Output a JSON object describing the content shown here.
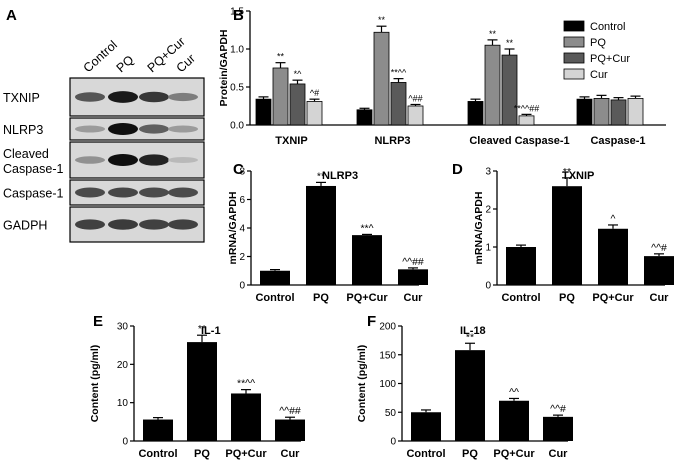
{
  "panel_letters": [
    "A",
    "B",
    "C",
    "D",
    "E",
    "F"
  ],
  "western_blot": {
    "lanes": [
      "Control",
      "PQ",
      "PQ+Cur",
      "Cur"
    ],
    "rows": [
      {
        "label_lines": [
          "TXNIP"
        ],
        "intensity": [
          0.65,
          0.95,
          0.8,
          0.45
        ]
      },
      {
        "label_lines": [
          "NLRP3"
        ],
        "intensity": [
          0.3,
          1.0,
          0.6,
          0.3
        ]
      },
      {
        "label_lines": [
          "Cleaved",
          "Caspase-1"
        ],
        "intensity": [
          0.35,
          1.0,
          0.9,
          0.15
        ]
      },
      {
        "label_lines": [
          "Caspase-1"
        ],
        "intensity": [
          0.7,
          0.72,
          0.7,
          0.7
        ]
      },
      {
        "label_lines": [
          "GADPH"
        ],
        "intensity": [
          0.75,
          0.78,
          0.75,
          0.75
        ]
      }
    ]
  },
  "colors": {
    "control": "#000000",
    "pq": "#8c8c8c",
    "pq_cur": "#5a5a5a",
    "cur": "#d4d4d4",
    "bar_black": "#000000"
  },
  "chart_data": [
    {
      "id": "B",
      "type": "bar",
      "ylabel": "Protein/GAPDH",
      "ylim": [
        0,
        1.5
      ],
      "yticks": [
        "0.0",
        "0.5",
        "1.0",
        "1.5"
      ],
      "categories": [
        "TXNIP",
        "NLRP3",
        "Cleaved  Caspase-1",
        "Caspase-1"
      ],
      "legend": "top-right",
      "series": [
        {
          "name": "Control",
          "color": "#000000",
          "values": [
            0.34,
            0.2,
            0.31,
            0.34
          ],
          "errors": [
            0.03,
            0.02,
            0.03,
            0.03
          ],
          "annotations": [
            "",
            "",
            "",
            ""
          ]
        },
        {
          "name": "PQ",
          "color": "#8c8c8c",
          "values": [
            0.75,
            1.22,
            1.05,
            0.35
          ],
          "errors": [
            0.07,
            0.08,
            0.07,
            0.04
          ],
          "annotations": [
            "**",
            "**",
            "**",
            ""
          ]
        },
        {
          "name": "PQ+Cur",
          "color": "#5a5a5a",
          "values": [
            0.54,
            0.56,
            0.92,
            0.33
          ],
          "errors": [
            0.05,
            0.05,
            0.08,
            0.03
          ],
          "annotations": [
            "*^",
            "**^^",
            "**",
            ""
          ]
        },
        {
          "name": "Cur",
          "color": "#d4d4d4",
          "values": [
            0.31,
            0.25,
            0.12,
            0.35
          ],
          "errors": [
            0.03,
            0.02,
            0.02,
            0.03
          ],
          "annotations": [
            "^#",
            "^##",
            "**^^##",
            ""
          ]
        }
      ]
    },
    {
      "id": "C",
      "type": "bar",
      "title": "NLRP3",
      "ylabel": "mRNA/GAPDH",
      "ylim": [
        0,
        8
      ],
      "yticks": [
        "0",
        "2",
        "4",
        "6",
        "8"
      ],
      "categories": [
        "Control",
        "PQ",
        "PQ+Cur",
        "Cur"
      ],
      "values": [
        1.0,
        6.95,
        3.5,
        1.1
      ],
      "errors": [
        0.08,
        0.25,
        0.05,
        0.1
      ],
      "annotations": [
        "",
        "**",
        "**^",
        "^^##"
      ]
    },
    {
      "id": "D",
      "type": "bar",
      "title": "TXNIP",
      "ylabel": "mRNA/GAPDH",
      "ylim": [
        0,
        3
      ],
      "yticks": [
        "0",
        "1",
        "2",
        "3"
      ],
      "categories": [
        "Control",
        "PQ",
        "PQ+Cur",
        "Cur"
      ],
      "values": [
        1.0,
        2.6,
        1.48,
        0.76
      ],
      "errors": [
        0.05,
        0.22,
        0.1,
        0.06
      ],
      "annotations": [
        "",
        "**",
        "^",
        "^^#"
      ]
    },
    {
      "id": "E",
      "type": "bar",
      "title": "IL-1",
      "ylabel": "Content (pg/ml)",
      "ylim": [
        0,
        30
      ],
      "yticks": [
        "0",
        "10",
        "20",
        "30"
      ],
      "categories": [
        "Control",
        "PQ",
        "PQ+Cur",
        "Cur"
      ],
      "values": [
        5.6,
        25.8,
        12.4,
        5.6
      ],
      "errors": [
        0.5,
        1.8,
        1.0,
        0.6
      ],
      "annotations": [
        "",
        "**",
        "**^^",
        "^^##"
      ]
    },
    {
      "id": "F",
      "type": "bar",
      "title": "IL-18",
      "ylabel": "Content (pg/ml)",
      "ylim": [
        0,
        200
      ],
      "yticks": [
        "0",
        "50",
        "100",
        "150",
        "200"
      ],
      "categories": [
        "Control",
        "PQ",
        "PQ+Cur",
        "Cur"
      ],
      "values": [
        50,
        158,
        70,
        42
      ],
      "errors": [
        4,
        12,
        4,
        3
      ],
      "annotations": [
        "",
        "**",
        "^^",
        "^^#"
      ]
    }
  ]
}
